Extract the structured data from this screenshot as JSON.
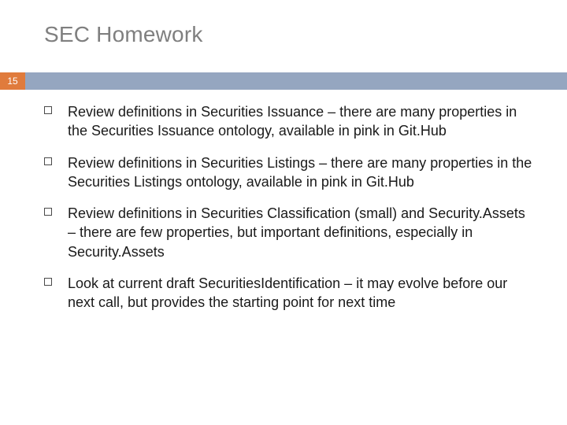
{
  "title": {
    "text": "SEC Homework",
    "color": "#7f7f7f",
    "fontsize": 28
  },
  "badge": {
    "text": "15",
    "background": "#e07b3c",
    "color": "#ffffff",
    "fontsize": 12
  },
  "bar": {
    "background": "#95a6c0"
  },
  "bullets": {
    "marker_border_color": "#4a4a4a",
    "text_color": "#1a1a1a",
    "text_fontsize": 18,
    "items": [
      "Review definitions in Securities Issuance – there are many properties in the Securities Issuance ontology, available in pink in Git.Hub",
      "Review definitions in Securities Listings – there are many properties in the Securities Listings ontology, available in pink in Git.Hub",
      "Review definitions in Securities Classification (small) and Security.Assets – there are few properties, but important definitions, especially in Security.Assets",
      "Look at current draft SecuritiesIdentification – it may evolve before our next call, but provides the starting point for next time"
    ]
  }
}
